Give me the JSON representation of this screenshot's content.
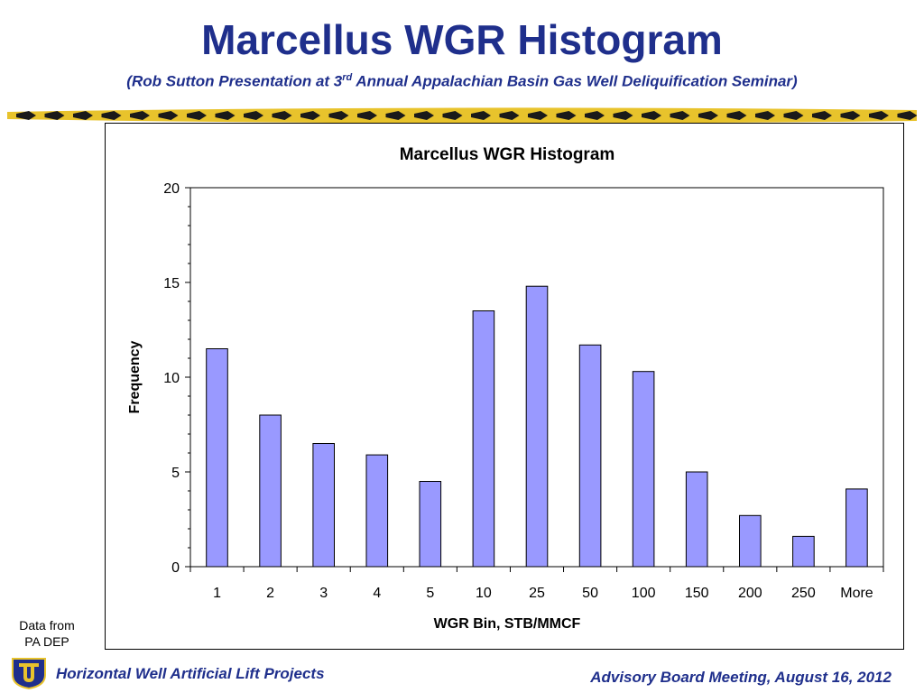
{
  "slide": {
    "title": "Marcellus WGR Histogram",
    "subtitle_pre": "(Rob Sutton Presentation at 3",
    "subtitle_sup": "rd",
    "subtitle_post": " Annual Appalachian Basin Gas Well Deliquification Seminar)"
  },
  "source_note": {
    "line1": "Data from",
    "line2": "PA DEP"
  },
  "footer": {
    "left": "Horizontal Well Artificial Lift Projects",
    "right": "Advisory Board Meeting, August 16, 2012",
    "logo_icon": "university-shield-icon"
  },
  "colors": {
    "title": "#1f2f8c",
    "bar_fill": "#9999ff",
    "bar_stroke": "#000000",
    "banner_gold": "#e8c32c",
    "banner_dark": "#1a1a1a"
  },
  "chart_data": {
    "type": "bar",
    "title": "Marcellus WGR Histogram",
    "xlabel": "WGR Bin, STB/MMCF",
    "ylabel": "Frequency",
    "categories": [
      "1",
      "2",
      "3",
      "4",
      "5",
      "10",
      "25",
      "50",
      "100",
      "150",
      "200",
      "250",
      "More"
    ],
    "values": [
      11.5,
      8,
      6.5,
      5.9,
      4.5,
      13.5,
      14.8,
      11.7,
      10.3,
      5,
      2.7,
      1.6,
      4.1
    ],
    "ylim": [
      0,
      20
    ],
    "yticks": [
      0,
      5,
      10,
      15,
      20
    ],
    "grid": false,
    "legend": "none"
  }
}
